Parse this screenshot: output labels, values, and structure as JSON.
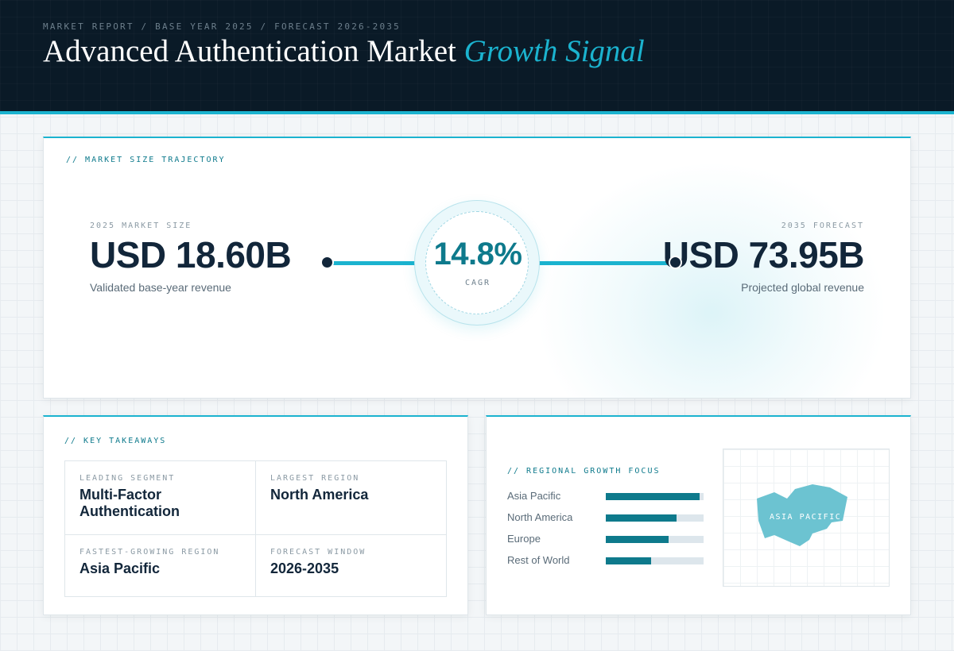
{
  "header": {
    "eyebrow": "MARKET REPORT / BASE YEAR 2025 / FORECAST 2026-2035",
    "title_main": "Advanced Authentication Market",
    "title_accent": "Growth Signal"
  },
  "market": {
    "label": "// MARKET SIZE TRAJECTORY",
    "base": {
      "caption": "2025 MARKET SIZE",
      "value": "USD 18.60B",
      "subtitle": "Validated base-year revenue"
    },
    "forecast": {
      "caption": "2035 FORECAST",
      "value": "USD 73.95B",
      "subtitle": "Projected global revenue"
    },
    "cagr": {
      "value": "14.8%",
      "label": "CAGR"
    }
  },
  "takeaways": {
    "label": "// KEY TAKEAWAYS",
    "items": [
      {
        "label": "LEADING SEGMENT",
        "value": "Multi-Factor Authentication"
      },
      {
        "label": "LARGEST REGION",
        "value": "North America"
      },
      {
        "label": "FASTEST-GROWING REGION",
        "value": "Asia Pacific"
      },
      {
        "label": "FORECAST WINDOW",
        "value": "2026-2035"
      }
    ]
  },
  "regional": {
    "label": "// REGIONAL GROWTH FOCUS",
    "bars": [
      {
        "name": "Asia Pacific",
        "level": 0.96
      },
      {
        "name": "North America",
        "level": 0.72
      },
      {
        "name": "Europe",
        "level": 0.64
      },
      {
        "name": "Rest of World",
        "level": 0.46
      }
    ],
    "map_label": "ASIA PACIFIC",
    "colors": {
      "accent": "#1bb3cf",
      "bar": "#0e7a8c",
      "map_shape": "#6cc3d1",
      "navy": "#0a1a27"
    }
  }
}
